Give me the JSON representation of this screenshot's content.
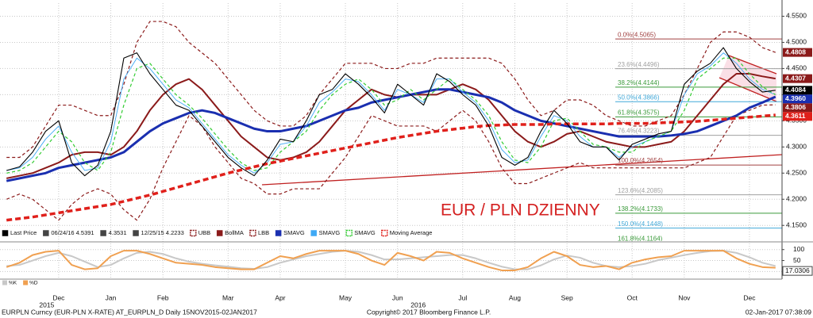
{
  "chart_data": {
    "type": "line",
    "annotation": "EUR / PLN DZIENNY",
    "categories": [
      null,
      null,
      null,
      null,
      "Dec",
      null,
      null,
      null,
      "Jan",
      null,
      null,
      null,
      "Feb",
      null,
      null,
      null,
      null,
      "Mar",
      null,
      null,
      null,
      "Apr",
      null,
      null,
      null,
      null,
      "May",
      null,
      null,
      null,
      "Jun",
      null,
      null,
      null,
      null,
      "Jul",
      null,
      null,
      null,
      "Aug",
      null,
      null,
      null,
      "Sep",
      null,
      null,
      null,
      null,
      "Oct",
      null,
      null,
      null,
      "Nov",
      null,
      null,
      null,
      null,
      "Dec",
      null,
      null
    ],
    "years": [
      "2015",
      "2016"
    ],
    "ylim": [
      4.12,
      4.575
    ],
    "yticks": [
      {
        "value": 4.15,
        "label": "4.1500"
      },
      {
        "value": 4.2,
        "label": "4.2000"
      },
      {
        "value": 4.25,
        "label": "4.2500"
      },
      {
        "value": 4.3,
        "label": "4.3000"
      },
      {
        "value": 4.35,
        "label": "4.3500"
      },
      {
        "value": 4.4,
        "label": "4.4000"
      },
      {
        "value": 4.45,
        "label": "4.4500"
      },
      {
        "value": 4.5,
        "label": "4.5000"
      },
      {
        "value": 4.55,
        "label": "4.5500"
      }
    ],
    "grid": true,
    "legend_info": [
      "06/24/16 4.5391",
      "4.3531",
      "12/25/15 4.2233"
    ],
    "series": [
      {
        "name": "Last Price",
        "color": "#000000",
        "style": "solid",
        "label_box": true,
        "values": [
          4.255,
          4.262,
          4.29,
          4.33,
          4.35,
          4.27,
          4.245,
          4.265,
          4.33,
          4.47,
          4.48,
          4.44,
          4.41,
          4.38,
          4.37,
          4.34,
          4.31,
          4.28,
          4.26,
          4.245,
          4.275,
          4.315,
          4.31,
          4.35,
          4.4,
          4.41,
          4.44,
          4.42,
          4.395,
          4.365,
          4.42,
          4.4,
          4.38,
          4.44,
          4.425,
          4.4,
          4.38,
          4.34,
          4.28,
          4.265,
          4.28,
          4.33,
          4.37,
          4.345,
          4.31,
          4.3,
          4.3,
          4.275,
          4.305,
          4.315,
          4.325,
          4.33,
          4.42,
          4.445,
          4.46,
          4.49,
          4.45,
          4.425,
          4.405,
          4.4084
        ]
      },
      {
        "name": "UBB",
        "color": "#8b1a1a",
        "style": "dashed",
        "label_box": true,
        "values": [
          4.28,
          4.28,
          4.3,
          4.34,
          4.38,
          4.38,
          4.37,
          4.36,
          4.36,
          4.42,
          4.5,
          4.54,
          4.54,
          4.53,
          4.5,
          4.48,
          4.46,
          4.43,
          4.4,
          4.37,
          4.35,
          4.34,
          4.34,
          4.36,
          4.4,
          4.43,
          4.46,
          4.46,
          4.46,
          4.45,
          4.45,
          4.46,
          4.46,
          4.47,
          4.47,
          4.47,
          4.47,
          4.47,
          4.46,
          4.43,
          4.39,
          4.36,
          4.37,
          4.39,
          4.39,
          4.38,
          4.36,
          4.35,
          4.34,
          4.34,
          4.35,
          4.36,
          4.4,
          4.45,
          4.5,
          4.52,
          4.52,
          4.51,
          4.49,
          4.4808
        ]
      },
      {
        "name": "BollMA",
        "color": "#8b1a1a",
        "style": "medium",
        "label_box": true,
        "values": [
          4.24,
          4.245,
          4.25,
          4.26,
          4.27,
          4.285,
          4.29,
          4.29,
          4.285,
          4.3,
          4.33,
          4.37,
          4.4,
          4.42,
          4.43,
          4.41,
          4.38,
          4.35,
          4.32,
          4.3,
          4.28,
          4.275,
          4.28,
          4.29,
          4.31,
          4.34,
          4.37,
          4.39,
          4.41,
          4.4,
          4.395,
          4.4,
          4.4,
          4.4,
          4.41,
          4.42,
          4.41,
          4.39,
          4.36,
          4.33,
          4.31,
          4.3,
          4.31,
          4.325,
          4.33,
          4.32,
          4.31,
          4.305,
          4.3,
          4.3,
          4.305,
          4.31,
          4.33,
          4.36,
          4.39,
          4.42,
          4.44,
          4.44,
          4.435,
          4.4307
        ]
      },
      {
        "name": "LBB",
        "color": "#8b1a1a",
        "style": "dashed",
        "label_box": true,
        "values": [
          4.2,
          4.21,
          4.2,
          4.18,
          4.16,
          4.19,
          4.21,
          4.22,
          4.21,
          4.18,
          4.16,
          4.2,
          4.26,
          4.31,
          4.36,
          4.34,
          4.3,
          4.27,
          4.24,
          4.23,
          4.21,
          4.21,
          4.22,
          4.22,
          4.22,
          4.25,
          4.28,
          4.32,
          4.36,
          4.35,
          4.34,
          4.34,
          4.34,
          4.33,
          4.35,
          4.37,
          4.35,
          4.31,
          4.26,
          4.23,
          4.23,
          4.24,
          4.25,
          4.26,
          4.27,
          4.26,
          4.26,
          4.26,
          4.26,
          4.26,
          4.26,
          4.26,
          4.26,
          4.27,
          4.28,
          4.32,
          4.36,
          4.37,
          4.38,
          4.3806
        ]
      },
      {
        "name": "SMAVG",
        "color": "#1a2fb0",
        "style": "bold",
        "label_box": true,
        "last_label": "4.3960",
        "values": [
          4.235,
          4.24,
          4.245,
          4.25,
          4.26,
          4.265,
          4.27,
          4.275,
          4.28,
          4.29,
          4.31,
          4.33,
          4.345,
          4.355,
          4.365,
          4.37,
          4.365,
          4.355,
          4.345,
          4.335,
          4.33,
          4.33,
          4.335,
          4.34,
          4.35,
          4.36,
          4.37,
          4.375,
          4.385,
          4.39,
          4.395,
          4.4,
          4.405,
          4.41,
          4.41,
          4.405,
          4.4,
          4.395,
          4.385,
          4.37,
          4.36,
          4.35,
          4.345,
          4.34,
          4.335,
          4.33,
          4.325,
          4.32,
          4.32,
          4.32,
          4.32,
          4.322,
          4.325,
          4.33,
          4.34,
          4.35,
          4.36,
          4.375,
          4.385,
          4.396
        ]
      },
      {
        "name": "SMAVG",
        "color": "#3fa9f5",
        "style": "thin",
        "label_box": false,
        "values": [
          4.255,
          4.26,
          4.28,
          4.315,
          4.34,
          4.29,
          4.255,
          4.26,
          4.31,
          4.43,
          4.47,
          4.45,
          4.42,
          4.39,
          4.375,
          4.345,
          4.315,
          4.285,
          4.265,
          4.25,
          4.27,
          4.305,
          4.31,
          4.34,
          4.385,
          4.405,
          4.43,
          4.425,
          4.4,
          4.37,
          4.41,
          4.4,
          4.385,
          4.43,
          4.43,
          4.405,
          4.385,
          4.35,
          4.295,
          4.27,
          4.275,
          4.32,
          4.36,
          4.35,
          4.32,
          4.3,
          4.3,
          4.28,
          4.3,
          4.31,
          4.32,
          4.33,
          4.4,
          4.44,
          4.455,
          4.48,
          4.46,
          4.43,
          4.41,
          4.4
        ]
      },
      {
        "name": "SMAVG",
        "color": "#33cc33",
        "style": "dashed",
        "label_box": false,
        "values": [
          4.25,
          4.255,
          4.27,
          4.3,
          4.33,
          4.31,
          4.27,
          4.255,
          4.29,
          4.38,
          4.45,
          4.46,
          4.43,
          4.4,
          4.38,
          4.355,
          4.325,
          4.295,
          4.27,
          4.255,
          4.26,
          4.29,
          4.31,
          4.33,
          4.37,
          4.4,
          4.42,
          4.43,
          4.41,
          4.38,
          4.39,
          4.41,
          4.39,
          4.41,
          4.43,
          4.41,
          4.39,
          4.36,
          4.31,
          4.275,
          4.27,
          4.3,
          4.35,
          4.355,
          4.33,
          4.305,
          4.3,
          4.29,
          4.29,
          4.31,
          4.32,
          4.33,
          4.37,
          4.43,
          4.45,
          4.47,
          4.47,
          4.44,
          4.415,
          4.4
        ]
      },
      {
        "name": "Moving Average",
        "color": "#e0201b",
        "style": "bold-dashed",
        "label_box": true,
        "values": [
          4.16,
          4.163,
          4.166,
          4.17,
          4.174,
          4.178,
          4.182,
          4.186,
          4.19,
          4.196,
          4.202,
          4.208,
          4.215,
          4.222,
          4.229,
          4.236,
          4.243,
          4.25,
          4.256,
          4.262,
          4.268,
          4.273,
          4.278,
          4.283,
          4.288,
          4.293,
          4.298,
          4.303,
          4.308,
          4.313,
          4.318,
          4.322,
          4.326,
          4.33,
          4.333,
          4.336,
          4.339,
          4.341,
          4.342,
          4.343,
          4.343,
          4.343,
          4.344,
          4.344,
          4.344,
          4.344,
          4.344,
          4.345,
          4.345,
          4.345,
          4.346,
          4.347,
          4.348,
          4.349,
          4.351,
          4.353,
          4.355,
          4.357,
          4.359,
          4.3611
        ]
      }
    ],
    "fib_levels": [
      {
        "label": "0.0%(4.5065)",
        "value": 4.5065,
        "color": "#a04040"
      },
      {
        "label": "23.6%(4.4496)",
        "value": 4.4496,
        "color": "#a0a0a0"
      },
      {
        "label": "38.2%(4.4144)",
        "value": 4.4144,
        "color": "#3a9a3a"
      },
      {
        "label": "50.0%(4.3866)",
        "value": 4.3866,
        "color": "#40a8d8"
      },
      {
        "label": "61.8%(4.3575)",
        "value": 4.3575,
        "color": "#3a9a3a"
      },
      {
        "label": "76.4%(4.3223)",
        "value": 4.3223,
        "color": "#a0a0a0"
      },
      {
        "label": "100.0%(4.2654)",
        "value": 4.2654,
        "color": "#a04040"
      },
      {
        "label": "123.6%(4.2085)",
        "value": 4.2085,
        "color": "#a0a0a0"
      },
      {
        "label": "138.2%(4.1733)",
        "value": 4.1733,
        "color": "#3a9a3a"
      },
      {
        "label": "150.0%(4.1448)",
        "value": 4.1448,
        "color": "#40a8d8"
      },
      {
        "label": "161.8%(4.1164)",
        "value": 4.1164,
        "color": "#3a9a3a"
      }
    ],
    "oscillator": {
      "ylim": [
        -35,
        128
      ],
      "yticks": [
        0,
        50,
        100
      ],
      "series": [
        {
          "name": "%K",
          "color": "#c8c8c8",
          "values": [
            25,
            30,
            50,
            70,
            85,
            70,
            45,
            20,
            30,
            60,
            85,
            90,
            80,
            60,
            45,
            35,
            28,
            22,
            15,
            12,
            20,
            40,
            55,
            70,
            80,
            90,
            95,
            90,
            75,
            55,
            55,
            60,
            65,
            70,
            75,
            75,
            60,
            40,
            22,
            10,
            10,
            28,
            55,
            73,
            63,
            40,
            25,
            20,
            25,
            35,
            52,
            63,
            75,
            85,
            93,
            95,
            85,
            65,
            40,
            25
          ]
        },
        {
          "name": "%D",
          "color": "#f0a050",
          "values": [
            20,
            40,
            75,
            90,
            95,
            30,
            10,
            15,
            70,
            95,
            95,
            80,
            60,
            40,
            35,
            30,
            20,
            15,
            10,
            10,
            40,
            70,
            60,
            80,
            95,
            95,
            95,
            80,
            50,
            30,
            85,
            70,
            50,
            90,
            85,
            60,
            40,
            20,
            5,
            5,
            20,
            60,
            90,
            70,
            30,
            20,
            25,
            10,
            40,
            55,
            65,
            70,
            95,
            95,
            95,
            95,
            60,
            35,
            20,
            17.0306
          ]
        }
      ]
    }
  },
  "footer": {
    "left": "EURPLN Curncy (EUR-PLN X-RATE) AT_EURPLN_D  Daily 15NOV2015-02JAN2017",
    "center": "Copyright© 2017 Bloomberg Finance L.P.",
    "right": "02-Jan-2017 07:38:09"
  }
}
